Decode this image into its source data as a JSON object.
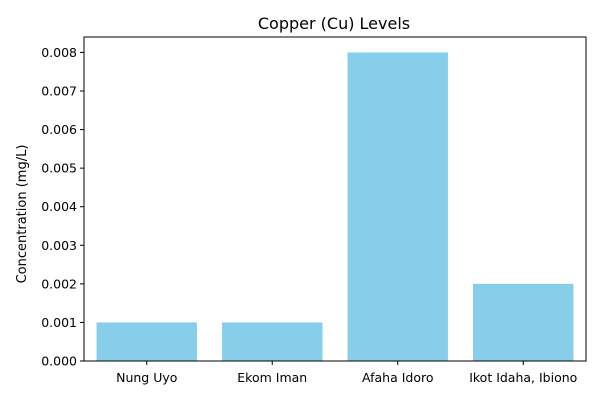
{
  "chart_data": {
    "type": "bar",
    "title": "Copper (Cu) Levels",
    "xlabel": "",
    "ylabel": "Concentration (mg/L)",
    "categories": [
      "Nung Uyo",
      "Ekom Iman",
      "Afaha Idoro",
      "Ikot Idaha, Ibiono"
    ],
    "values": [
      0.001,
      0.001,
      0.008,
      0.002
    ],
    "ylim": [
      0,
      0.0084
    ],
    "yticks": [
      0.0,
      0.001,
      0.002,
      0.003,
      0.004,
      0.005,
      0.006,
      0.007,
      0.008
    ],
    "ytick_labels": [
      "0.000",
      "0.001",
      "0.002",
      "0.003",
      "0.004",
      "0.005",
      "0.006",
      "0.007",
      "0.008"
    ],
    "grid": false,
    "bar_color": "#87CEEB"
  }
}
